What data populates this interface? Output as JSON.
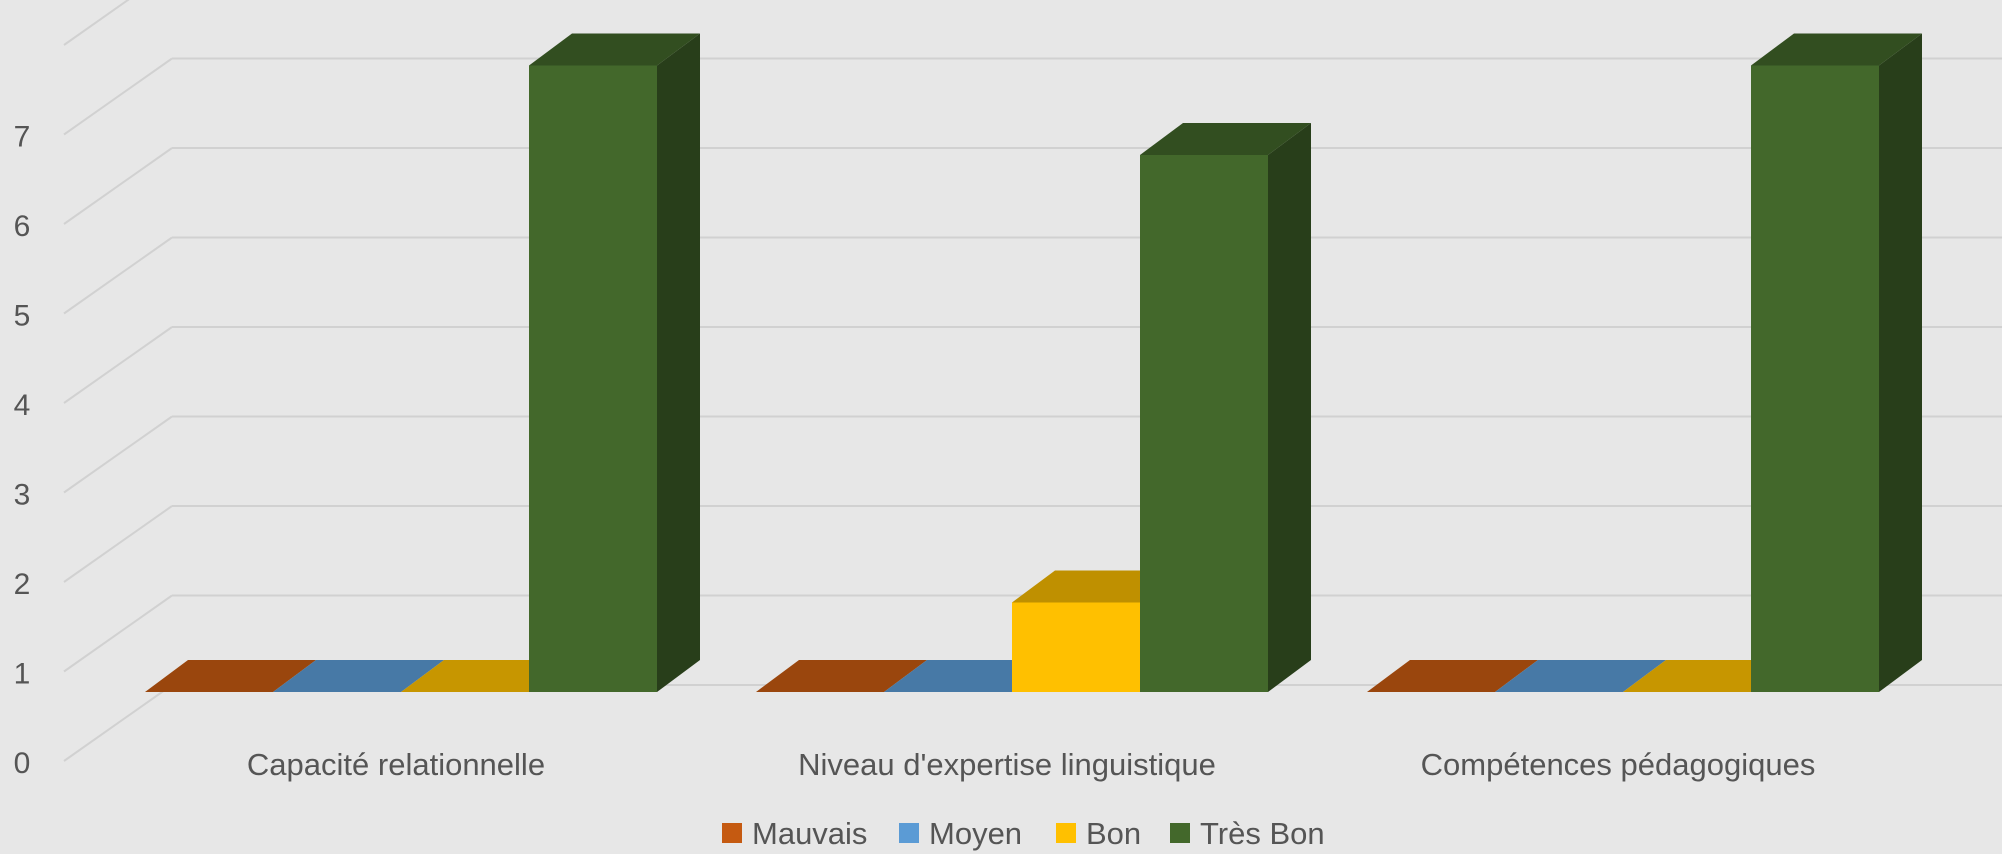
{
  "chart_data": {
    "type": "bar",
    "style": "3d-clustered-column",
    "title": "",
    "xlabel": "",
    "ylabel": "",
    "categories": [
      "Capacité relationnelle",
      "Niveau d'expertise linguistique",
      "Compétences pédagogiques"
    ],
    "series": [
      {
        "name": "Mauvais",
        "color": "#c55a11",
        "values": [
          0,
          0,
          0
        ]
      },
      {
        "name": "Moyen",
        "color": "#5b9bd5",
        "values": [
          0,
          0,
          0
        ]
      },
      {
        "name": "Bon",
        "color": "#ffc000",
        "values": [
          0,
          1,
          0
        ]
      },
      {
        "name": "Très Bon",
        "color": "#43682b",
        "values": [
          7,
          6,
          7
        ]
      }
    ],
    "ylim": [
      0,
      7
    ],
    "yticks": [
      0,
      1,
      2,
      3,
      4,
      5,
      6,
      7
    ],
    "grid": true,
    "legend_position": "bottom"
  }
}
